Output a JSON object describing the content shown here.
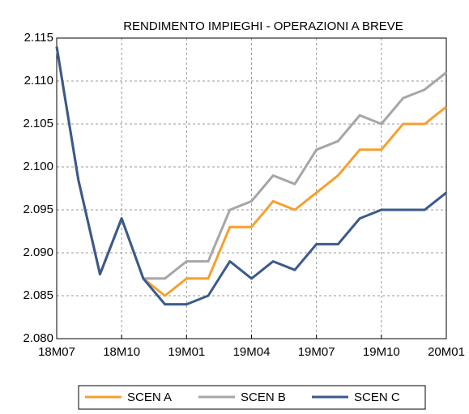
{
  "chart_data": {
    "type": "line",
    "title": "RENDIMENTO IMPIEGHI - OPERAZIONI A BREVE",
    "categories": [
      "18M07",
      null,
      null,
      "18M10",
      null,
      null,
      "19M01",
      null,
      null,
      "19M04",
      null,
      null,
      "19M07",
      null,
      null,
      "19M10",
      null,
      null,
      "20M01"
    ],
    "series": [
      {
        "name": "SCEN A",
        "color": "#f5a030",
        "values": [
          2.114,
          2.0985,
          2.0875,
          2.094,
          2.087,
          2.085,
          2.087,
          2.087,
          2.093,
          2.093,
          2.096,
          2.095,
          2.097,
          2.099,
          2.102,
          2.102,
          2.105,
          2.105,
          2.107
        ]
      },
      {
        "name": "SCEN B",
        "color": "#a6a6a6",
        "values": [
          2.114,
          2.0985,
          2.0875,
          2.094,
          2.087,
          2.087,
          2.089,
          2.089,
          2.095,
          2.096,
          2.099,
          2.098,
          2.102,
          2.103,
          2.106,
          2.105,
          2.108,
          2.109,
          2.111
        ]
      },
      {
        "name": "SCEN C",
        "color": "#3a5a8c",
        "values": [
          2.114,
          2.0985,
          2.0875,
          2.094,
          2.087,
          2.084,
          2.084,
          2.085,
          2.089,
          2.087,
          2.089,
          2.088,
          2.091,
          2.091,
          2.094,
          2.095,
          2.095,
          2.095,
          2.097
        ]
      }
    ],
    "ylim": [
      2.08,
      2.115
    ],
    "yticks": [
      {
        "value": 2.08,
        "label": "2.080"
      },
      2.085,
      {
        "value": 2.09,
        "label": "2.090"
      },
      2.095,
      {
        "value": 2.1,
        "label": "2.100"
      },
      2.105,
      {
        "value": 2.11,
        "label": "2.110"
      },
      2.115
    ],
    "grid": true,
    "legend": "bottom"
  }
}
